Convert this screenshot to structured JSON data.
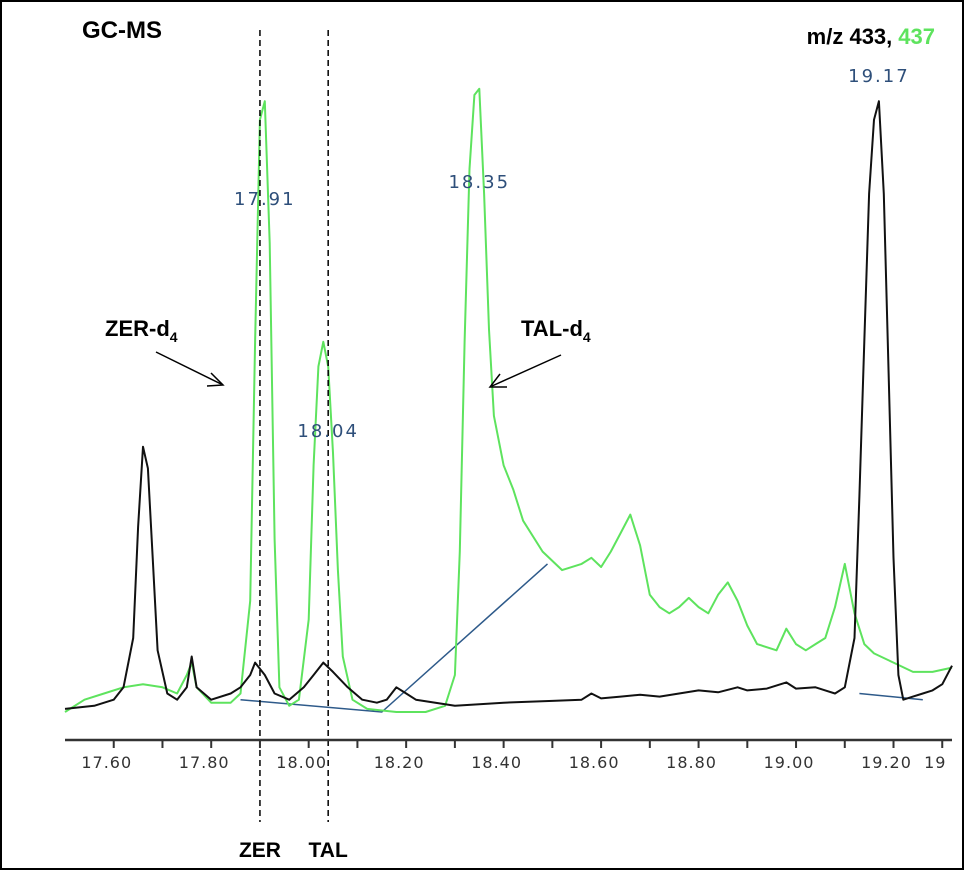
{
  "chart_data": {
    "type": "line",
    "title": "GC-MS",
    "ion_label_prefix": "m/z 433,",
    "ion_label_green": "437",
    "colors": {
      "green_trace": "#5ee35e",
      "black_trace": "#111111",
      "baseline": "#2e5a8a",
      "peak_label": "#2e4f7a"
    },
    "xlim": [
      17.5,
      19.32
    ],
    "x_ticks": [
      "17.60",
      "17.80",
      "18.00",
      "18.20",
      "18.40",
      "18.60",
      "18.80",
      "19.00",
      "19.20",
      "19"
    ],
    "peak_labels": [
      {
        "text": "17.91",
        "x": 17.91
      },
      {
        "text": "18.04",
        "x": 18.04
      },
      {
        "text": "18.35",
        "x": 18.35
      },
      {
        "text": "19.17",
        "x": 19.17
      }
    ],
    "reference_lines": [
      {
        "label": "ZER",
        "x": 17.9
      },
      {
        "label": "TAL",
        "x": 18.04
      }
    ],
    "annotations": [
      {
        "label": "ZER-d",
        "subscript": "4"
      },
      {
        "label": "TAL-d",
        "subscript": "4"
      }
    ],
    "series": [
      {
        "color": "green",
        "points": [
          [
            17.5,
            0.0
          ],
          [
            17.54,
            0.02
          ],
          [
            17.58,
            0.03
          ],
          [
            17.62,
            0.04
          ],
          [
            17.66,
            0.045
          ],
          [
            17.7,
            0.04
          ],
          [
            17.73,
            0.03
          ],
          [
            17.75,
            0.06
          ],
          [
            17.76,
            0.08
          ],
          [
            17.77,
            0.04
          ],
          [
            17.8,
            0.015
          ],
          [
            17.84,
            0.015
          ],
          [
            17.86,
            0.03
          ],
          [
            17.88,
            0.18
          ],
          [
            17.89,
            0.6
          ],
          [
            17.9,
            0.96
          ],
          [
            17.91,
            0.99
          ],
          [
            17.92,
            0.76
          ],
          [
            17.93,
            0.28
          ],
          [
            17.94,
            0.04
          ],
          [
            17.96,
            0.01
          ],
          [
            17.98,
            0.02
          ],
          [
            18.0,
            0.15
          ],
          [
            18.01,
            0.4
          ],
          [
            18.02,
            0.56
          ],
          [
            18.03,
            0.6
          ],
          [
            18.04,
            0.56
          ],
          [
            18.05,
            0.42
          ],
          [
            18.06,
            0.23
          ],
          [
            18.07,
            0.09
          ],
          [
            18.09,
            0.02
          ],
          [
            18.12,
            0.005
          ],
          [
            18.18,
            0.0
          ],
          [
            18.24,
            0.0
          ],
          [
            18.28,
            0.01
          ],
          [
            18.3,
            0.06
          ],
          [
            18.31,
            0.26
          ],
          [
            18.32,
            0.6
          ],
          [
            18.33,
            0.88
          ],
          [
            18.34,
            1.0
          ],
          [
            18.35,
            1.01
          ],
          [
            18.36,
            0.84
          ],
          [
            18.37,
            0.62
          ],
          [
            18.38,
            0.48
          ],
          [
            18.4,
            0.4
          ],
          [
            18.42,
            0.36
          ],
          [
            18.44,
            0.31
          ],
          [
            18.48,
            0.26
          ],
          [
            18.52,
            0.23
          ],
          [
            18.56,
            0.24
          ],
          [
            18.58,
            0.25
          ],
          [
            18.6,
            0.235
          ],
          [
            18.62,
            0.26
          ],
          [
            18.64,
            0.29
          ],
          [
            18.66,
            0.32
          ],
          [
            18.68,
            0.27
          ],
          [
            18.7,
            0.19
          ],
          [
            18.72,
            0.17
          ],
          [
            18.74,
            0.16
          ],
          [
            18.76,
            0.17
          ],
          [
            18.78,
            0.185
          ],
          [
            18.8,
            0.17
          ],
          [
            18.82,
            0.16
          ],
          [
            18.84,
            0.19
          ],
          [
            18.86,
            0.21
          ],
          [
            18.88,
            0.18
          ],
          [
            18.9,
            0.14
          ],
          [
            18.92,
            0.11
          ],
          [
            18.96,
            0.1
          ],
          [
            18.98,
            0.135
          ],
          [
            19.0,
            0.11
          ],
          [
            19.02,
            0.1
          ],
          [
            19.04,
            0.11
          ],
          [
            19.06,
            0.12
          ],
          [
            19.08,
            0.17
          ],
          [
            19.1,
            0.24
          ],
          [
            19.12,
            0.16
          ],
          [
            19.14,
            0.11
          ],
          [
            19.16,
            0.095
          ],
          [
            19.2,
            0.08
          ],
          [
            19.24,
            0.065
          ],
          [
            19.28,
            0.065
          ],
          [
            19.32,
            0.072
          ]
        ]
      },
      {
        "color": "black",
        "points": [
          [
            17.5,
            0.005
          ],
          [
            17.56,
            0.01
          ],
          [
            17.6,
            0.02
          ],
          [
            17.62,
            0.04
          ],
          [
            17.64,
            0.12
          ],
          [
            17.65,
            0.3
          ],
          [
            17.66,
            0.43
          ],
          [
            17.67,
            0.395
          ],
          [
            17.68,
            0.25
          ],
          [
            17.69,
            0.1
          ],
          [
            17.71,
            0.03
          ],
          [
            17.73,
            0.02
          ],
          [
            17.75,
            0.04
          ],
          [
            17.76,
            0.09
          ],
          [
            17.77,
            0.04
          ],
          [
            17.8,
            0.02
          ],
          [
            17.84,
            0.03
          ],
          [
            17.86,
            0.04
          ],
          [
            17.88,
            0.06
          ],
          [
            17.89,
            0.08
          ],
          [
            17.91,
            0.06
          ],
          [
            17.93,
            0.03
          ],
          [
            17.96,
            0.02
          ],
          [
            17.99,
            0.04
          ],
          [
            18.01,
            0.06
          ],
          [
            18.03,
            0.08
          ],
          [
            18.05,
            0.065
          ],
          [
            18.08,
            0.04
          ],
          [
            18.11,
            0.02
          ],
          [
            18.14,
            0.015
          ],
          [
            18.16,
            0.02
          ],
          [
            18.18,
            0.04
          ],
          [
            18.2,
            0.03
          ],
          [
            18.22,
            0.02
          ],
          [
            18.3,
            0.01
          ],
          [
            18.4,
            0.015
          ],
          [
            18.5,
            0.018
          ],
          [
            18.56,
            0.02
          ],
          [
            18.58,
            0.03
          ],
          [
            18.6,
            0.022
          ],
          [
            18.64,
            0.025
          ],
          [
            18.68,
            0.028
          ],
          [
            18.72,
            0.025
          ],
          [
            18.76,
            0.03
          ],
          [
            18.8,
            0.035
          ],
          [
            18.84,
            0.032
          ],
          [
            18.88,
            0.04
          ],
          [
            18.9,
            0.035
          ],
          [
            18.94,
            0.038
          ],
          [
            18.98,
            0.048
          ],
          [
            19.0,
            0.038
          ],
          [
            19.04,
            0.04
          ],
          [
            19.06,
            0.035
          ],
          [
            19.08,
            0.03
          ],
          [
            19.1,
            0.04
          ],
          [
            19.12,
            0.12
          ],
          [
            19.13,
            0.35
          ],
          [
            19.14,
            0.6
          ],
          [
            19.15,
            0.84
          ],
          [
            19.16,
            0.96
          ],
          [
            19.17,
            0.99
          ],
          [
            19.18,
            0.84
          ],
          [
            19.19,
            0.55
          ],
          [
            19.2,
            0.25
          ],
          [
            19.21,
            0.06
          ],
          [
            19.22,
            0.02
          ],
          [
            19.24,
            0.025
          ],
          [
            19.26,
            0.03
          ],
          [
            19.28,
            0.035
          ],
          [
            19.3,
            0.045
          ],
          [
            19.32,
            0.075
          ]
        ]
      }
    ],
    "baselines": [
      [
        [
          17.86,
          0.02
        ],
        [
          18.15,
          0.0
        ],
        [
          18.49,
          0.24
        ]
      ],
      [
        [
          19.13,
          0.03
        ],
        [
          19.26,
          0.02
        ]
      ]
    ]
  }
}
